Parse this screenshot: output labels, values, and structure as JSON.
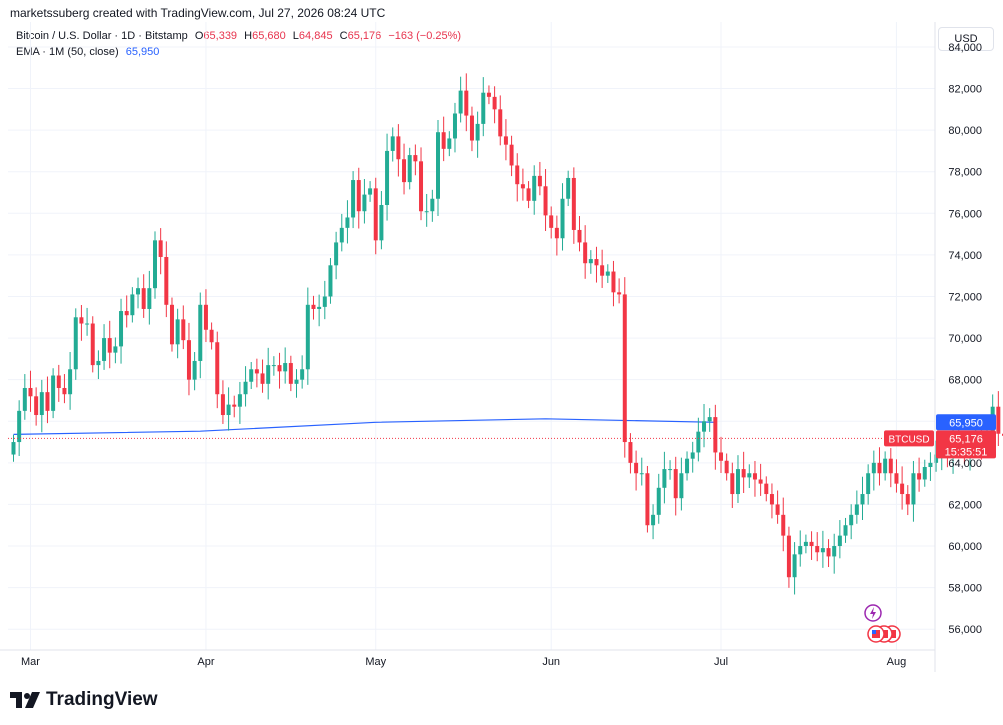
{
  "header": {
    "credit": "marketssuberg created with TradingView.com, Jul 27, 2026 08:24 UTC"
  },
  "legend": {
    "symbol": "Bitcoin / U.S. Dollar · 1D · Bitstamp",
    "o_label": "O",
    "o_value": "65,339",
    "h_label": "H",
    "h_value": "65,680",
    "l_label": "L",
    "l_value": "64,845",
    "c_label": "C",
    "c_value": "65,176",
    "change": "−163 (−0.25%)",
    "ema_label": "EMA · 1M (50, close)",
    "ema_value": "65,950"
  },
  "currency_button": "USD",
  "price_tags": {
    "ema": "65,950",
    "symbol": "BTCUSD",
    "last": "65,176",
    "countdown": "15:35:51"
  },
  "footer": {
    "brand": "TradingView"
  },
  "colors": {
    "up": "#22ab94",
    "down": "#f23645",
    "ema": "#2962ff",
    "grid": "#f0f3fa"
  },
  "icons": [
    "lightning-event-icon",
    "us-flag-event-icon"
  ],
  "chart_data": {
    "type": "candlestick",
    "title": "Bitcoin / U.S. Dollar · 1D · Bitstamp",
    "x_start": "2026-02-26",
    "x_tick_labels": [
      {
        "label": "Mar",
        "date": "2026-03-01"
      },
      {
        "label": "Apr",
        "date": "2026-04-01"
      },
      {
        "label": "May",
        "date": "2026-05-01"
      },
      {
        "label": "Jun",
        "date": "2026-06-01"
      },
      {
        "label": "Jul",
        "date": "2026-07-01"
      },
      {
        "label": "Aug",
        "date": "2026-08-01"
      }
    ],
    "y_ticks": [
      56000,
      58000,
      60000,
      62000,
      64000,
      66000,
      68000,
      70000,
      72000,
      74000,
      76000,
      78000,
      80000,
      82000,
      84000
    ],
    "ylim": [
      55000,
      85200
    ],
    "grid": true,
    "last_price": 65176,
    "closes": [
      65000,
      66500,
      67600,
      67200,
      66300,
      67400,
      66500,
      68200,
      67600,
      67300,
      68500,
      71000,
      70700,
      70700,
      68700,
      68900,
      70000,
      69300,
      69600,
      71300,
      71100,
      72100,
      72400,
      71400,
      72400,
      74700,
      73900,
      71600,
      69700,
      70900,
      69900,
      68000,
      68900,
      71600,
      70400,
      69800,
      67300,
      66300,
      66800,
      66700,
      67300,
      67900,
      68500,
      68300,
      67800,
      68700,
      68700,
      68400,
      68800,
      67800,
      68000,
      68500,
      71600,
      71400,
      71500,
      72000,
      73500,
      74600,
      75300,
      75800,
      77600,
      76100,
      76900,
      77200,
      74700,
      76400,
      79000,
      79700,
      78600,
      77500,
      78800,
      78500,
      76100,
      76100,
      76700,
      79900,
      79100,
      79600,
      80800,
      81900,
      80700,
      79500,
      80300,
      81800,
      81600,
      81000,
      79700,
      79300,
      78300,
      77400,
      77200,
      76600,
      77800,
      77300,
      75900,
      75300,
      74800,
      76700,
      77700,
      75200,
      74600,
      73600,
      73800,
      73500,
      73000,
      73200,
      72200,
      72100,
      65000,
      64000,
      63500,
      63500,
      61000,
      61500,
      62800,
      63700,
      63700,
      62300,
      63500,
      64200,
      64500,
      65500,
      66000,
      66200,
      64500,
      64100,
      63500,
      62500,
      63700,
      63300,
      63500,
      63200,
      63000,
      62500,
      62000,
      61500,
      60500,
      58500,
      59600,
      60000,
      60200,
      60000,
      59700,
      59900,
      59500,
      60000,
      60500,
      61000,
      61500,
      62000,
      62500,
      63500,
      64000,
      63500,
      64200,
      63500,
      63000,
      62500,
      62000,
      63500,
      63200,
      63800,
      64000,
      64400,
      64700,
      64300,
      65300,
      64800,
      64300,
      65000,
      65200,
      64900,
      65300,
      66700,
      65400,
      65300,
      65700,
      64900,
      65300,
      65800,
      65176
    ],
    "ema_series": {
      "name": "EMA · 1M (50, close)",
      "points": [
        {
          "date": "2026-02-26",
          "value": 65370
        },
        {
          "date": "2026-03-31",
          "value": 65520
        },
        {
          "date": "2026-05-01",
          "value": 65950
        },
        {
          "date": "2026-05-31",
          "value": 66120
        },
        {
          "date": "2026-06-30",
          "value": 65950
        }
      ]
    }
  }
}
